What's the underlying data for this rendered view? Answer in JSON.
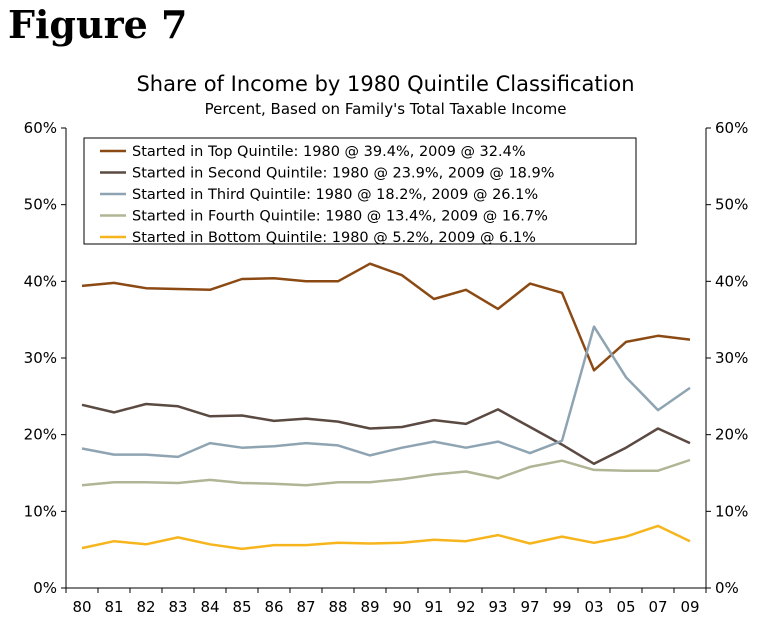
{
  "figure_label": "Figure 7",
  "chart_data": {
    "type": "line",
    "title": "Share of Income by 1980 Quintile Classification",
    "subtitle": "Percent, Based on Family's Total Taxable Income",
    "categories": [
      "80",
      "81",
      "82",
      "83",
      "84",
      "85",
      "86",
      "87",
      "88",
      "89",
      "90",
      "91",
      "92",
      "93",
      "97",
      "99",
      "03",
      "05",
      "07",
      "09"
    ],
    "y_ticks": [
      "0%",
      "10%",
      "20%",
      "30%",
      "40%",
      "50%",
      "60%"
    ],
    "ylim": [
      0,
      60
    ],
    "grid": false,
    "legend_position": "top-left",
    "series": [
      {
        "name": "Started in Top Quintile: 1980 @ 39.4%, 2009 @ 32.4%",
        "color": "#8B4A14",
        "values": [
          39.4,
          39.8,
          39.1,
          39.0,
          38.9,
          40.3,
          40.4,
          40.0,
          40.0,
          42.3,
          40.8,
          37.7,
          38.9,
          36.4,
          39.7,
          38.5,
          28.4,
          32.1,
          32.9,
          32.4
        ]
      },
      {
        "name": "Started in Second Quintile: 1980 @ 23.9%, 2009 @ 18.9%",
        "color": "#5A4A42",
        "values": [
          23.9,
          22.9,
          24.0,
          23.7,
          22.4,
          22.5,
          21.8,
          22.1,
          21.7,
          20.8,
          21.0,
          21.9,
          21.4,
          23.3,
          21.0,
          18.7,
          16.2,
          18.3,
          20.8,
          18.9
        ]
      },
      {
        "name": "Started in Third Quintile: 1980 @ 18.2%, 2009 @ 26.1%",
        "color": "#8FA4B2",
        "values": [
          18.2,
          17.4,
          17.4,
          17.1,
          18.9,
          18.3,
          18.5,
          18.9,
          18.6,
          17.3,
          18.3,
          19.1,
          18.3,
          19.1,
          17.6,
          19.2,
          34.1,
          27.5,
          23.2,
          26.1
        ]
      },
      {
        "name": "Started in Fourth Quintile: 1980 @ 13.4%, 2009 @ 16.7%",
        "color": "#B0B596",
        "values": [
          13.4,
          13.8,
          13.8,
          13.7,
          14.1,
          13.7,
          13.6,
          13.4,
          13.8,
          13.8,
          14.2,
          14.8,
          15.2,
          14.3,
          15.8,
          16.6,
          15.4,
          15.3,
          15.3,
          16.7
        ]
      },
      {
        "name": "Started in Bottom Quintile: 1980 @ 5.2%, 2009 @ 6.1%",
        "color": "#F7B51D",
        "values": [
          5.2,
          6.1,
          5.7,
          6.6,
          5.7,
          5.1,
          5.6,
          5.6,
          5.9,
          5.8,
          5.9,
          6.3,
          6.1,
          6.9,
          5.8,
          6.7,
          5.9,
          6.7,
          8.1,
          6.1
        ]
      }
    ]
  }
}
